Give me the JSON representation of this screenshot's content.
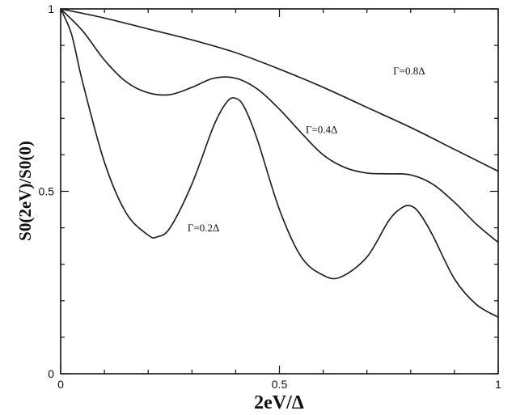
{
  "chart_data": {
    "type": "line",
    "xlabel": "2eV/Δ",
    "ylabel": "S0(2eV)/S0(0)",
    "xlim": [
      0,
      1
    ],
    "ylim": [
      0,
      1
    ],
    "x_ticks": [
      {
        "value": 0,
        "label": "0"
      },
      {
        "value": 0.5,
        "label": "0.5"
      },
      {
        "value": 1,
        "label": "1"
      }
    ],
    "y_ticks": [
      {
        "value": 0,
        "label": "0"
      },
      {
        "value": 0.5,
        "label": "0.5"
      },
      {
        "value": 1,
        "label": "1"
      }
    ],
    "x_minor_step": 0.1,
    "y_minor_step": 0.1,
    "grid": false,
    "series": [
      {
        "name": "Γ=0.8Δ",
        "label_at": [
          0.76,
          0.82
        ],
        "x": [
          0,
          0.1,
          0.2,
          0.3,
          0.4,
          0.5,
          0.6,
          0.7,
          0.8,
          0.9,
          1.0
        ],
        "y": [
          1.0,
          0.975,
          0.945,
          0.915,
          0.88,
          0.835,
          0.785,
          0.73,
          0.675,
          0.615,
          0.555
        ]
      },
      {
        "name": "Γ=0.4Δ",
        "label_at": [
          0.56,
          0.66
        ],
        "x": [
          0,
          0.05,
          0.1,
          0.15,
          0.2,
          0.25,
          0.3,
          0.35,
          0.4,
          0.45,
          0.5,
          0.55,
          0.6,
          0.65,
          0.7,
          0.75,
          0.8,
          0.85,
          0.9,
          0.95,
          1.0
        ],
        "y": [
          1.0,
          0.94,
          0.86,
          0.8,
          0.77,
          0.765,
          0.785,
          0.81,
          0.81,
          0.78,
          0.725,
          0.66,
          0.6,
          0.565,
          0.55,
          0.548,
          0.545,
          0.52,
          0.47,
          0.41,
          0.36
        ]
      },
      {
        "name": "Γ=0.2Δ",
        "label_at": [
          0.29,
          0.39
        ],
        "x": [
          0,
          0.025,
          0.05,
          0.1,
          0.15,
          0.2,
          0.22,
          0.25,
          0.3,
          0.35,
          0.38,
          0.4,
          0.42,
          0.45,
          0.5,
          0.55,
          0.6,
          0.64,
          0.7,
          0.75,
          0.78,
          0.8,
          0.82,
          0.85,
          0.9,
          0.95,
          1.0
        ],
        "y": [
          1.0,
          0.93,
          0.8,
          0.58,
          0.44,
          0.38,
          0.375,
          0.4,
          0.52,
          0.68,
          0.745,
          0.755,
          0.73,
          0.64,
          0.45,
          0.32,
          0.27,
          0.265,
          0.32,
          0.42,
          0.455,
          0.46,
          0.44,
          0.38,
          0.26,
          0.19,
          0.155
        ]
      }
    ]
  }
}
